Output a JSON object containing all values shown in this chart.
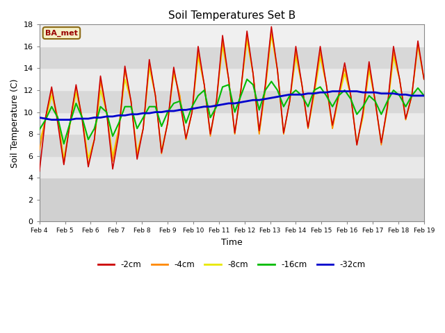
{
  "title": "Soil Temperatures Set B",
  "xlabel": "Time",
  "ylabel": "Soil Temperature (C)",
  "ylim": [
    0,
    18
  ],
  "yticks": [
    0,
    2,
    4,
    6,
    8,
    10,
    12,
    14,
    16,
    18
  ],
  "legend_label": "BA_met",
  "fig_bg": "#ffffff",
  "plot_bg": "#ffffff",
  "band_colors": [
    "#d8d8d8",
    "#d8d8d8",
    "#ebebeb",
    "#d8d8d8",
    "#ebebeb",
    "#d8d8d8",
    "#ebebeb",
    "#d8d8d8",
    "#ebebeb"
  ],
  "colors": {
    "-2cm": "#cc0000",
    "-4cm": "#ff8800",
    "-8cm": "#e8e800",
    "-16cm": "#00bb00",
    "-32cm": "#0000cc"
  },
  "x_labels": [
    "Feb 4",
    "Feb 5",
    "Feb 6",
    "Feb 7",
    "Feb 8",
    "Feb 9",
    "Feb 10",
    "Feb 11",
    "Feb 12",
    "Feb 13",
    "Feb 14",
    "Feb 15",
    "Feb 16",
    "Feb 17",
    "Feb 18",
    "Feb 19"
  ],
  "n_per_day": 4,
  "depth_2cm": [
    4.6,
    9.5,
    12.3,
    9.0,
    5.2,
    9.0,
    12.5,
    9.3,
    5.0,
    7.5,
    13.3,
    10.0,
    4.8,
    8.0,
    14.2,
    11.0,
    5.7,
    8.5,
    14.8,
    11.5,
    6.3,
    9.0,
    14.1,
    11.0,
    7.6,
    10.0,
    16.0,
    12.5,
    8.0,
    11.0,
    17.0,
    13.0,
    8.1,
    12.0,
    17.4,
    13.5,
    8.3,
    12.5,
    17.8,
    13.8,
    8.1,
    11.0,
    16.0,
    12.5,
    8.6,
    12.0,
    16.0,
    12.5,
    8.8,
    11.5,
    14.5,
    11.5,
    7.0,
    10.0,
    14.6,
    11.0,
    7.2,
    10.5,
    16.0,
    13.0,
    9.4,
    11.5,
    16.5,
    13.0
  ],
  "depth_4cm": [
    6.5,
    9.5,
    12.0,
    9.5,
    5.3,
    9.0,
    12.3,
    9.5,
    5.2,
    7.5,
    12.8,
    10.0,
    5.5,
    8.5,
    13.8,
    11.0,
    6.0,
    8.5,
    14.5,
    11.5,
    6.2,
    9.0,
    13.8,
    11.5,
    7.5,
    10.0,
    15.5,
    12.5,
    7.8,
    11.0,
    16.5,
    13.0,
    8.0,
    12.0,
    17.0,
    13.5,
    8.0,
    12.2,
    17.5,
    13.8,
    8.0,
    11.0,
    15.5,
    12.5,
    8.5,
    11.8,
    15.5,
    12.5,
    8.5,
    11.5,
    14.0,
    11.5,
    7.0,
    9.8,
    14.2,
    11.0,
    7.0,
    10.5,
    15.5,
    13.0,
    9.3,
    11.5,
    16.2,
    13.0
  ],
  "depth_8cm": [
    7.2,
    9.3,
    11.5,
    9.5,
    5.8,
    8.8,
    11.8,
    9.5,
    5.8,
    7.5,
    12.0,
    10.0,
    6.0,
    8.5,
    13.0,
    11.0,
    6.3,
    8.5,
    14.0,
    11.5,
    6.5,
    9.0,
    13.5,
    11.5,
    7.5,
    10.0,
    15.0,
    12.5,
    8.0,
    11.0,
    16.0,
    13.0,
    8.0,
    12.0,
    16.5,
    13.5,
    8.0,
    12.0,
    17.0,
    13.8,
    8.0,
    11.0,
    15.0,
    12.5,
    8.5,
    11.5,
    15.0,
    12.5,
    8.5,
    11.2,
    13.5,
    11.5,
    7.2,
    9.5,
    13.8,
    11.0,
    7.2,
    10.2,
    15.0,
    13.0,
    9.3,
    11.5,
    16.0,
    13.0
  ],
  "depth_16cm": [
    8.4,
    9.3,
    10.5,
    9.5,
    7.1,
    9.0,
    10.8,
    9.5,
    7.5,
    8.5,
    10.5,
    10.0,
    7.8,
    9.0,
    10.5,
    10.5,
    8.5,
    9.5,
    10.5,
    10.5,
    8.7,
    10.0,
    10.8,
    11.0,
    9.0,
    10.5,
    11.5,
    12.0,
    9.5,
    10.5,
    12.3,
    12.5,
    10.0,
    11.5,
    13.0,
    12.5,
    10.2,
    12.0,
    12.8,
    12.0,
    10.5,
    11.5,
    12.0,
    11.5,
    10.5,
    12.0,
    12.3,
    11.5,
    10.5,
    11.5,
    12.0,
    11.2,
    9.8,
    10.5,
    11.5,
    11.0,
    9.8,
    11.0,
    12.0,
    11.5,
    10.5,
    11.5,
    12.2,
    11.5
  ],
  "depth_32cm": [
    9.5,
    9.4,
    9.3,
    9.3,
    9.3,
    9.3,
    9.4,
    9.4,
    9.4,
    9.5,
    9.5,
    9.6,
    9.6,
    9.7,
    9.7,
    9.8,
    9.8,
    9.9,
    9.9,
    10.0,
    10.0,
    10.1,
    10.1,
    10.2,
    10.2,
    10.3,
    10.4,
    10.5,
    10.5,
    10.6,
    10.7,
    10.8,
    10.8,
    10.9,
    11.0,
    11.1,
    11.1,
    11.2,
    11.3,
    11.4,
    11.5,
    11.6,
    11.6,
    11.6,
    11.7,
    11.7,
    11.8,
    11.8,
    11.9,
    11.9,
    11.9,
    11.9,
    11.9,
    11.8,
    11.8,
    11.8,
    11.7,
    11.7,
    11.7,
    11.6,
    11.6,
    11.5,
    11.5,
    11.5
  ]
}
